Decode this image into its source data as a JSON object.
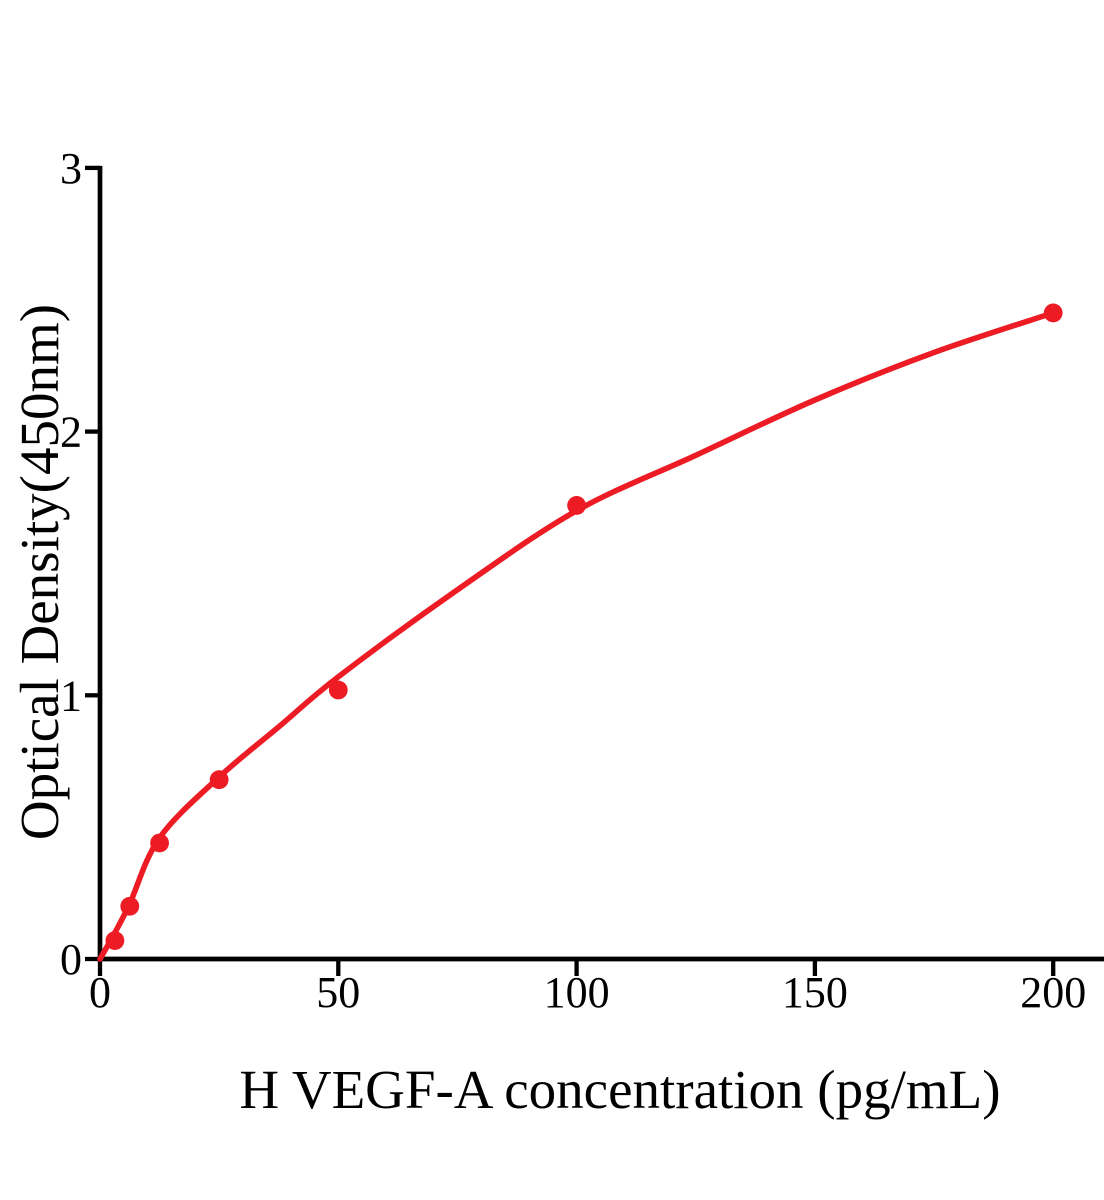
{
  "figure": {
    "background_color": "#ffffff"
  },
  "chart_data": {
    "type": "scatter",
    "title": "",
    "xlabel": "H VEGF-A concentration (pg/mL)",
    "ylabel": "Optical Density(450nm)",
    "xlim": [
      0,
      210.7
    ],
    "ylim": [
      0,
      3
    ],
    "xticks": [
      0,
      50,
      100,
      150,
      200
    ],
    "yticks": [
      0,
      1,
      2,
      3
    ],
    "grid": false,
    "legend": null,
    "axis_color": "#000000",
    "tick_label_color": "#000000",
    "series": [
      {
        "name": "standard-points",
        "type": "scatter",
        "color": "#ED1C24",
        "points": [
          {
            "x": 3.125,
            "y": 0.07
          },
          {
            "x": 6.25,
            "y": 0.2
          },
          {
            "x": 12.5,
            "y": 0.44
          },
          {
            "x": 25,
            "y": 0.68
          },
          {
            "x": 50,
            "y": 1.02
          },
          {
            "x": 100,
            "y": 1.72
          },
          {
            "x": 200,
            "y": 2.45
          }
        ]
      },
      {
        "name": "fitted-curve",
        "type": "line",
        "color": "#ED1C24",
        "points": [
          {
            "x": 0,
            "y": 0.0
          },
          {
            "x": 3.125,
            "y": 0.1
          },
          {
            "x": 6.25,
            "y": 0.21
          },
          {
            "x": 12.5,
            "y": 0.46
          },
          {
            "x": 25,
            "y": 0.69
          },
          {
            "x": 37.5,
            "y": 0.88
          },
          {
            "x": 50,
            "y": 1.07
          },
          {
            "x": 75,
            "y": 1.4
          },
          {
            "x": 100,
            "y": 1.7
          },
          {
            "x": 125,
            "y": 1.91
          },
          {
            "x": 150,
            "y": 2.12
          },
          {
            "x": 175,
            "y": 2.3
          },
          {
            "x": 200,
            "y": 2.45
          }
        ]
      }
    ]
  }
}
